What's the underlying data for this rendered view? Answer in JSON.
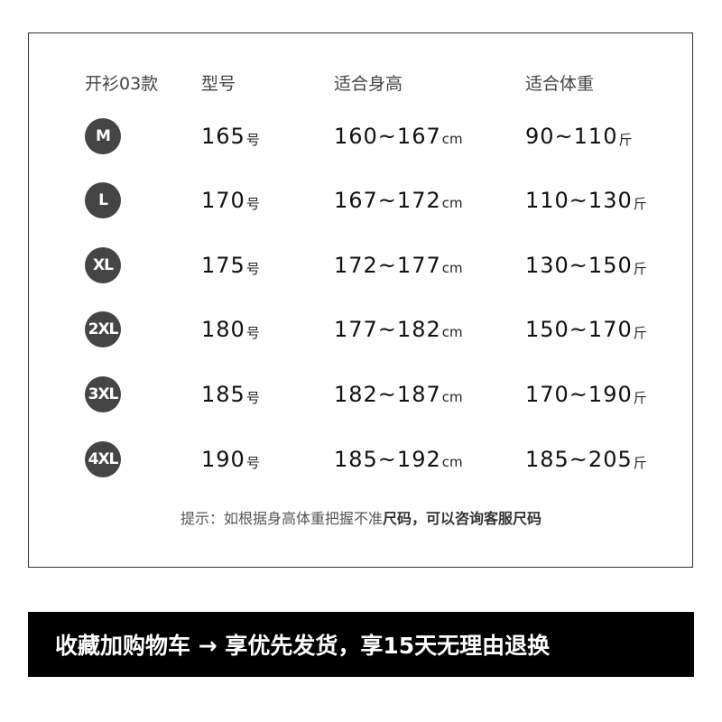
{
  "header": {
    "style": "开衫03款",
    "model": "型号",
    "height": "适合身高",
    "weight": "适合体重"
  },
  "rows": [
    {
      "size": "M",
      "model": "165",
      "model_unit": "号",
      "height": "160~167",
      "height_unit": "cm",
      "weight": "90~110",
      "weight_unit": "斤"
    },
    {
      "size": "L",
      "model": "170",
      "model_unit": "号",
      "height": "167~172",
      "height_unit": "cm",
      "weight": "110~130",
      "weight_unit": "斤"
    },
    {
      "size": "XL",
      "model": "175",
      "model_unit": "号",
      "height": "172~177",
      "height_unit": "cm",
      "weight": "130~150",
      "weight_unit": "斤"
    },
    {
      "size": "2XL",
      "model": "180",
      "model_unit": "号",
      "height": "177~182",
      "height_unit": "cm",
      "weight": "150~170",
      "weight_unit": "斤"
    },
    {
      "size": "3XL",
      "model": "185",
      "model_unit": "号",
      "height": "182~187",
      "height_unit": "cm",
      "weight": "170~190",
      "weight_unit": "斤"
    },
    {
      "size": "4XL",
      "model": "190",
      "model_unit": "号",
      "height": "185~192",
      "height_unit": "cm",
      "weight": "185~205",
      "weight_unit": "斤"
    }
  ],
  "tip": {
    "normal": "提示：如根据身高体重把握不准",
    "bold": "尺码，可以咨询客服尺码"
  },
  "banner": "收藏加购物车 → 享优先发货，享15天无理由退换",
  "colors": {
    "badge": "#454545",
    "banner_bg": "#000000"
  }
}
